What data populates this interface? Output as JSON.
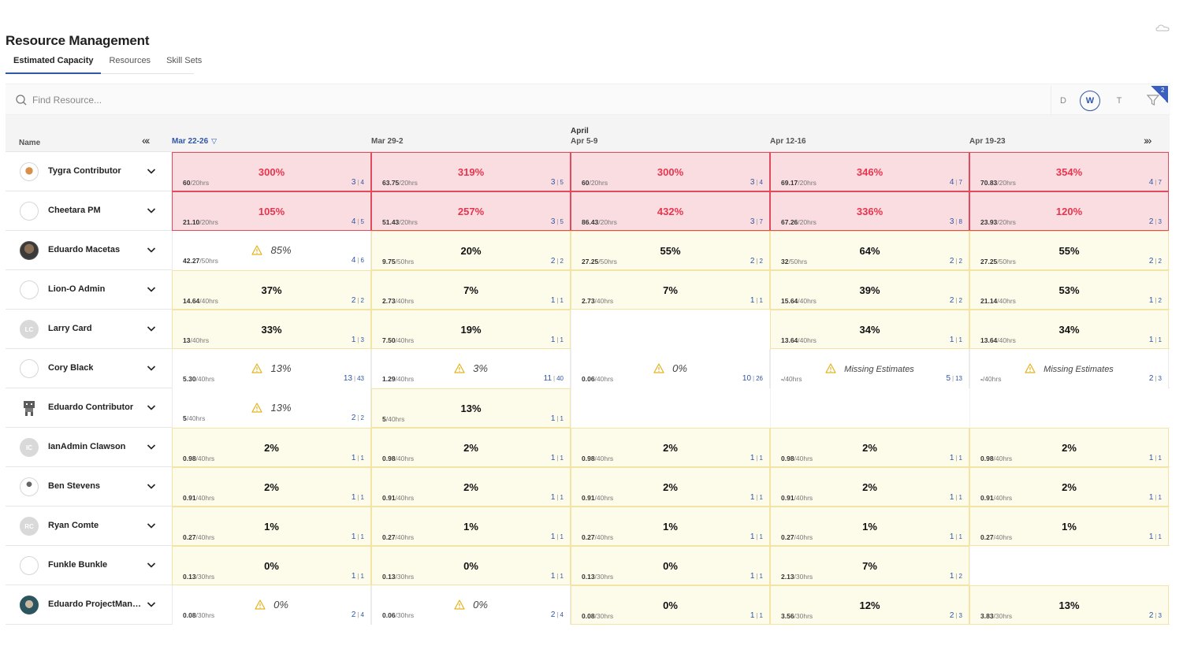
{
  "app": {
    "title": "Resource Management",
    "top_right_icon": "cloud-icon"
  },
  "tabs": [
    {
      "label": "Estimated Capacity",
      "active": true
    },
    {
      "label": "Resources",
      "active": false
    },
    {
      "label": "Skill Sets",
      "active": false
    }
  ],
  "search": {
    "placeholder": "Find Resource...",
    "value": ""
  },
  "view_modes": [
    {
      "label": "D",
      "active": false
    },
    {
      "label": "W",
      "active": true
    },
    {
      "label": "T",
      "active": false
    }
  ],
  "filter": {
    "count": "2",
    "icon": "filter-icon"
  },
  "header": {
    "name_label": "Name",
    "prev_icon": "«‹",
    "next_icon": "›»",
    "month_label": "April",
    "weeks": [
      "Mar 22-26",
      "Mar 29-2",
      "Apr 5-9",
      "Apr 12-16",
      "Apr 19-23"
    ]
  },
  "colors": {
    "accent": "#2f56a8",
    "over": "#e8344e",
    "over_bg": "#fadde1",
    "under_bg": "#fdfbea"
  },
  "rows": [
    {
      "name": "Tygra Contributor",
      "avatar": "mascot",
      "cells": [
        {
          "status": "over",
          "pct": "300%",
          "hrs": "60",
          "cap": "/20hrs",
          "a": "3",
          "b": "4"
        },
        {
          "status": "over",
          "pct": "319%",
          "hrs": "63.75",
          "cap": "/20hrs",
          "a": "3",
          "b": "5"
        },
        {
          "status": "over",
          "pct": "300%",
          "hrs": "60",
          "cap": "/20hrs",
          "a": "3",
          "b": "4"
        },
        {
          "status": "over",
          "pct": "346%",
          "hrs": "69.17",
          "cap": "/20hrs",
          "a": "4",
          "b": "7"
        },
        {
          "status": "over",
          "pct": "354%",
          "hrs": "70.83",
          "cap": "/20hrs",
          "a": "4",
          "b": "7"
        }
      ]
    },
    {
      "name": "Cheetara PM",
      "avatar": "blank",
      "cells": [
        {
          "status": "over",
          "pct": "105%",
          "hrs": "21.10",
          "cap": "/20hrs",
          "a": "4",
          "b": "5"
        },
        {
          "status": "over",
          "pct": "257%",
          "hrs": "51.43",
          "cap": "/20hrs",
          "a": "3",
          "b": "5"
        },
        {
          "status": "over",
          "pct": "432%",
          "hrs": "86.43",
          "cap": "/20hrs",
          "a": "3",
          "b": "7"
        },
        {
          "status": "over",
          "pct": "336%",
          "hrs": "67.26",
          "cap": "/20hrs",
          "a": "3",
          "b": "8"
        },
        {
          "status": "over",
          "pct": "120%",
          "hrs": "23.93",
          "cap": "/20hrs",
          "a": "2",
          "b": "3"
        }
      ]
    },
    {
      "name": "Eduardo Macetas",
      "avatar": "photo-dark",
      "cells": [
        {
          "status": "warn",
          "pct": "85%",
          "hrs": "42.27",
          "cap": "/50hrs",
          "a": "4",
          "b": "6"
        },
        {
          "status": "under",
          "pct": "20%",
          "hrs": "9.75",
          "cap": "/50hrs",
          "a": "2",
          "b": "2"
        },
        {
          "status": "under",
          "pct": "55%",
          "hrs": "27.25",
          "cap": "/50hrs",
          "a": "2",
          "b": "2"
        },
        {
          "status": "under",
          "pct": "64%",
          "hrs": "32",
          "cap": "/50hrs",
          "a": "2",
          "b": "2"
        },
        {
          "status": "under",
          "pct": "55%",
          "hrs": "27.25",
          "cap": "/50hrs",
          "a": "2",
          "b": "2"
        }
      ]
    },
    {
      "name": "Lion-O Admin",
      "avatar": "blank",
      "cells": [
        {
          "status": "under",
          "pct": "37%",
          "hrs": "14.64",
          "cap": "/40hrs",
          "a": "2",
          "b": "2"
        },
        {
          "status": "under",
          "pct": "7%",
          "hrs": "2.73",
          "cap": "/40hrs",
          "a": "1",
          "b": "1"
        },
        {
          "status": "under",
          "pct": "7%",
          "hrs": "2.73",
          "cap": "/40hrs",
          "a": "1",
          "b": "1"
        },
        {
          "status": "under",
          "pct": "39%",
          "hrs": "15.64",
          "cap": "/40hrs",
          "a": "2",
          "b": "2"
        },
        {
          "status": "under",
          "pct": "53%",
          "hrs": "21.14",
          "cap": "/40hrs",
          "a": "1",
          "b": "2"
        }
      ]
    },
    {
      "name": "Larry Card",
      "avatar": "initials",
      "initials": "LC",
      "cells": [
        {
          "status": "under",
          "pct": "33%",
          "hrs": "13",
          "cap": "/40hrs",
          "a": "1",
          "b": "3"
        },
        {
          "status": "under",
          "pct": "19%",
          "hrs": "7.50",
          "cap": "/40hrs",
          "a": "1",
          "b": "1"
        },
        {
          "status": "empty"
        },
        {
          "status": "under",
          "pct": "34%",
          "hrs": "13.64",
          "cap": "/40hrs",
          "a": "1",
          "b": "1"
        },
        {
          "status": "under",
          "pct": "34%",
          "hrs": "13.64",
          "cap": "/40hrs",
          "a": "1",
          "b": "1"
        }
      ]
    },
    {
      "name": "Cory Black",
      "avatar": "blank",
      "cells": [
        {
          "status": "warn",
          "pct": "13%",
          "hrs": "5.30",
          "cap": "/40hrs",
          "a": "13",
          "b": "43"
        },
        {
          "status": "warn",
          "pct": "3%",
          "hrs": "1.29",
          "cap": "/40hrs",
          "a": "11",
          "b": "40"
        },
        {
          "status": "warn",
          "pct": "0%",
          "hrs": "0.06",
          "cap": "/40hrs",
          "a": "10",
          "b": "26"
        },
        {
          "status": "warn",
          "pct": "Missing Estimates",
          "missing": true,
          "hrs": "-",
          "cap": "/40hrs",
          "a": "5",
          "b": "13"
        },
        {
          "status": "warn",
          "pct": "Missing Estimates",
          "missing": true,
          "hrs": "-",
          "cap": "/40hrs",
          "a": "2",
          "b": "3"
        }
      ]
    },
    {
      "name": "Eduardo Contributor",
      "avatar": "robot",
      "cells": [
        {
          "status": "warn",
          "pct": "13%",
          "hrs": "5",
          "cap": "/40hrs",
          "a": "2",
          "b": "2"
        },
        {
          "status": "under",
          "pct": "13%",
          "hrs": "5",
          "cap": "/40hrs",
          "a": "1",
          "b": "1"
        },
        {
          "status": "empty"
        },
        {
          "status": "empty"
        },
        {
          "status": "empty"
        }
      ]
    },
    {
      "name": "IanAdmin Clawson",
      "avatar": "initials",
      "initials": "IC",
      "cells": [
        {
          "status": "under",
          "pct": "2%",
          "hrs": "0.98",
          "cap": "/40hrs",
          "a": "1",
          "b": "1"
        },
        {
          "status": "under",
          "pct": "2%",
          "hrs": "0.98",
          "cap": "/40hrs",
          "a": "1",
          "b": "1"
        },
        {
          "status": "under",
          "pct": "2%",
          "hrs": "0.98",
          "cap": "/40hrs",
          "a": "1",
          "b": "1"
        },
        {
          "status": "under",
          "pct": "2%",
          "hrs": "0.98",
          "cap": "/40hrs",
          "a": "1",
          "b": "1"
        },
        {
          "status": "under",
          "pct": "2%",
          "hrs": "0.98",
          "cap": "/40hrs",
          "a": "1",
          "b": "1"
        }
      ]
    },
    {
      "name": "Ben Stevens",
      "avatar": "figure",
      "cells": [
        {
          "status": "under",
          "pct": "2%",
          "hrs": "0.91",
          "cap": "/40hrs",
          "a": "1",
          "b": "1"
        },
        {
          "status": "under",
          "pct": "2%",
          "hrs": "0.91",
          "cap": "/40hrs",
          "a": "1",
          "b": "1"
        },
        {
          "status": "under",
          "pct": "2%",
          "hrs": "0.91",
          "cap": "/40hrs",
          "a": "1",
          "b": "1"
        },
        {
          "status": "under",
          "pct": "2%",
          "hrs": "0.91",
          "cap": "/40hrs",
          "a": "1",
          "b": "1"
        },
        {
          "status": "under",
          "pct": "2%",
          "hrs": "0.91",
          "cap": "/40hrs",
          "a": "1",
          "b": "1"
        }
      ]
    },
    {
      "name": "Ryan Comte",
      "avatar": "initials",
      "initials": "RC",
      "cells": [
        {
          "status": "under",
          "pct": "1%",
          "hrs": "0.27",
          "cap": "/40hrs",
          "a": "1",
          "b": "1"
        },
        {
          "status": "under",
          "pct": "1%",
          "hrs": "0.27",
          "cap": "/40hrs",
          "a": "1",
          "b": "1"
        },
        {
          "status": "under",
          "pct": "1%",
          "hrs": "0.27",
          "cap": "/40hrs",
          "a": "1",
          "b": "1"
        },
        {
          "status": "under",
          "pct": "1%",
          "hrs": "0.27",
          "cap": "/40hrs",
          "a": "1",
          "b": "1"
        },
        {
          "status": "under",
          "pct": "1%",
          "hrs": "0.27",
          "cap": "/40hrs",
          "a": "1",
          "b": "1"
        }
      ]
    },
    {
      "name": "Funkle Bunkle",
      "avatar": "blank",
      "cells": [
        {
          "status": "under",
          "pct": "0%",
          "hrs": "0.13",
          "cap": "/30hrs",
          "a": "1",
          "b": "1"
        },
        {
          "status": "under",
          "pct": "0%",
          "hrs": "0.13",
          "cap": "/30hrs",
          "a": "1",
          "b": "1"
        },
        {
          "status": "under",
          "pct": "0%",
          "hrs": "0.13",
          "cap": "/30hrs",
          "a": "1",
          "b": "1"
        },
        {
          "status": "under",
          "pct": "7%",
          "hrs": "2.13",
          "cap": "/30hrs",
          "a": "1",
          "b": "2"
        },
        {
          "status": "empty"
        }
      ]
    },
    {
      "name": "Eduardo ProjectManag...",
      "avatar": "photo-teal",
      "cells": [
        {
          "status": "warn",
          "pct": "0%",
          "hrs": "0.08",
          "cap": "/30hrs",
          "a": "2",
          "b": "4"
        },
        {
          "status": "warn",
          "pct": "0%",
          "hrs": "0.06",
          "cap": "/30hrs",
          "a": "2",
          "b": "4"
        },
        {
          "status": "under",
          "pct": "0%",
          "hrs": "0.08",
          "cap": "/30hrs",
          "a": "1",
          "b": "1"
        },
        {
          "status": "under",
          "pct": "12%",
          "hrs": "3.56",
          "cap": "/30hrs",
          "a": "2",
          "b": "3"
        },
        {
          "status": "under",
          "pct": "13%",
          "hrs": "3.83",
          "cap": "/30hrs",
          "a": "2",
          "b": "3"
        }
      ]
    }
  ]
}
